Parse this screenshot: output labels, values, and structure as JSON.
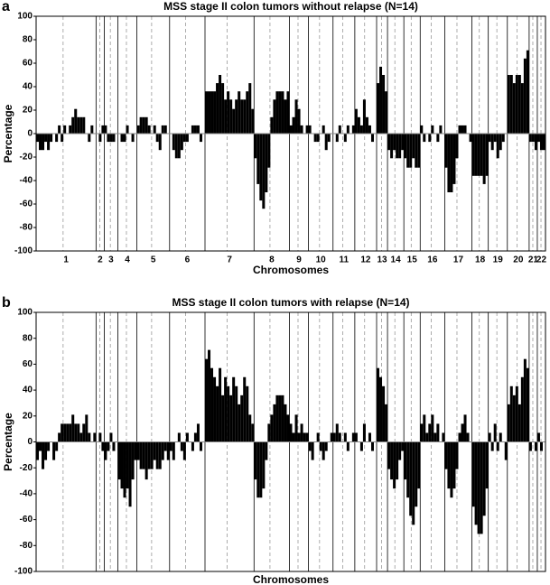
{
  "chart_data": [
    {
      "type": "genome-bar",
      "panel_label": "a",
      "title": "MSS stage II colon tumors without relapse (N=14)",
      "y_label": "Percentage",
      "x_label": "Chromosomes",
      "categories": [
        "1",
        "2",
        "3",
        "4",
        "5",
        "6",
        "7",
        "8",
        "9",
        "10",
        "11",
        "12",
        "13",
        "14",
        "15",
        "16",
        "17",
        "18",
        "19",
        "20",
        "21",
        "22"
      ],
      "color": "#000000",
      "ylim": [
        -100,
        100
      ],
      "yticks": [
        -100,
        -80,
        -60,
        -40,
        -20,
        0,
        20,
        40,
        60,
        80,
        100
      ],
      "segments": [
        [
          -7,
          -14,
          -14,
          -7,
          -14,
          -7,
          0,
          -7,
          7,
          -7,
          7,
          0,
          7,
          14,
          21,
          14,
          14,
          14,
          0,
          -7,
          7,
          0
        ],
        [
          0,
          -7,
          7
        ],
        [
          7,
          -7,
          -7,
          -7,
          0
        ],
        [
          0,
          -7,
          -7,
          7,
          0,
          -7,
          0
        ],
        [
          7,
          14,
          14,
          14,
          7,
          0,
          7,
          -7,
          -14,
          7,
          7,
          0
        ],
        [
          0,
          -14,
          -21,
          -21,
          -14,
          -7,
          -7,
          0,
          7,
          7,
          7,
          -7,
          0
        ],
        [
          36,
          36,
          36,
          36,
          43,
          50,
          43,
          29,
          36,
          29,
          21,
          29,
          36,
          29,
          29,
          36,
          43,
          21
        ],
        [
          -21,
          -43,
          -57,
          -64,
          -50,
          -29,
          14,
          29,
          36,
          36,
          36,
          29,
          36
        ],
        [
          7,
          14,
          29,
          21,
          7,
          0,
          7
        ],
        [
          7,
          0,
          -7,
          -7,
          0,
          7,
          -14,
          -7,
          0
        ],
        [
          0,
          -7,
          7,
          0,
          -7,
          7,
          0,
          7
        ],
        [
          21,
          14,
          7,
          29,
          14,
          7,
          -7,
          0
        ],
        [
          43,
          57,
          50,
          36
        ],
        [
          -14,
          -21,
          -14,
          -21,
          -21,
          -14
        ],
        [
          -21,
          -29,
          -29,
          -21,
          -29,
          -29
        ],
        [
          7,
          -7,
          0,
          -7,
          7,
          0,
          -7,
          7,
          0
        ],
        [
          -29,
          -50,
          -50,
          -43,
          -21,
          7,
          7,
          7,
          0,
          -7
        ],
        [
          -36,
          -36,
          -36,
          -36,
          -43,
          -36
        ],
        [
          -7,
          -14,
          -7,
          -21,
          -14,
          -7,
          0
        ],
        [
          50,
          50,
          43,
          50,
          50,
          43,
          64,
          71
        ],
        [
          -7,
          -7,
          -14
        ],
        [
          -7,
          -14,
          -14
        ]
      ]
    },
    {
      "type": "genome-bar",
      "panel_label": "b",
      "title": "MSS stage II colon tumors with relapse (N=14)",
      "y_label": "Percentage",
      "x_label": "Chromosomes",
      "color": "#000000",
      "ylim": [
        -100,
        100
      ],
      "yticks": [
        -100,
        -80,
        -60,
        -40,
        -20,
        0,
        20,
        40,
        60,
        80,
        100
      ],
      "segments": [
        [
          -14,
          -7,
          -21,
          -14,
          -7,
          0,
          -14,
          -7,
          7,
          14,
          14,
          14,
          14,
          21,
          14,
          14,
          7,
          14,
          21,
          7,
          0,
          7
        ],
        [
          0,
          7,
          -7
        ],
        [
          -14,
          -7,
          7,
          -7,
          0
        ],
        [
          -29,
          -36,
          -43,
          -36,
          -50,
          -29,
          -14
        ],
        [
          -14,
          -21,
          -21,
          -29,
          -21,
          -21,
          -14,
          -21,
          -21,
          -14,
          -7,
          -14
        ],
        [
          -7,
          -14,
          0,
          7,
          -7,
          -14,
          7,
          0,
          -7,
          7,
          14,
          -7,
          0
        ],
        [
          64,
          71,
          57,
          50,
          43,
          57,
          36,
          50,
          43,
          36,
          50,
          43,
          29,
          36,
          50,
          43,
          21,
          14
        ],
        [
          -29,
          -43,
          -43,
          -36,
          -14,
          14,
          21,
          29,
          36,
          36,
          36,
          29,
          21
        ],
        [
          14,
          7,
          21,
          7,
          14,
          7,
          7
        ],
        [
          -7,
          -14,
          0,
          7,
          -7,
          -14,
          -7,
          0,
          7
        ],
        [
          7,
          14,
          7,
          0,
          7,
          -7,
          0,
          7
        ],
        [
          7,
          0,
          -7,
          14,
          0,
          7,
          -7,
          0
        ],
        [
          57,
          50,
          43,
          29
        ],
        [
          -21,
          -29,
          -36,
          -29,
          -14,
          -7
        ],
        [
          -29,
          -43,
          -57,
          -64,
          -50,
          -36
        ],
        [
          14,
          21,
          7,
          14,
          21,
          7,
          14,
          0,
          7
        ],
        [
          -21,
          -36,
          -43,
          -36,
          -21,
          7,
          14,
          21,
          7,
          0
        ],
        [
          -50,
          -64,
          -71,
          -71,
          -57,
          -36
        ],
        [
          7,
          -7,
          14,
          -7,
          7,
          0,
          -14
        ],
        [
          29,
          43,
          36,
          43,
          29,
          50,
          64,
          57
        ],
        [
          -7,
          0,
          -7
        ],
        [
          7,
          -7,
          0
        ]
      ]
    }
  ]
}
